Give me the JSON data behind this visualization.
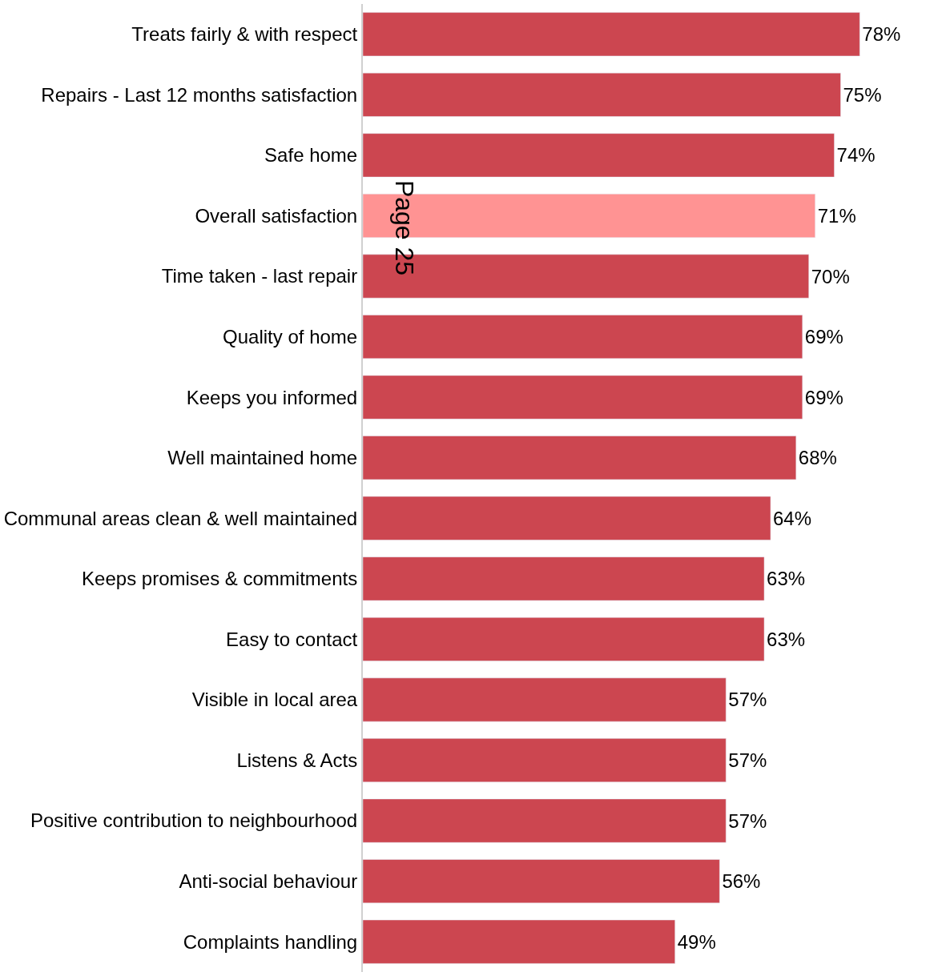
{
  "chart_data": {
    "type": "bar",
    "orientation": "horizontal",
    "categories": [
      "Treats fairly & with respect",
      "Repairs - Last 12 months satisfaction",
      "Safe home",
      "Overall satisfaction",
      "Time taken - last repair",
      "Quality of home",
      "Keeps you informed",
      "Well maintained home",
      "Communal areas clean & well maintained",
      "Keeps promises & commitments",
      "Easy to contact",
      "Visible in local area",
      "Listens & Acts",
      "Positive contribution to neighbourhood",
      "Anti-social behaviour",
      "Complaints handling"
    ],
    "values": [
      78,
      75,
      74,
      71,
      70,
      69,
      69,
      68,
      64,
      63,
      63,
      57,
      57,
      57,
      56,
      49
    ],
    "value_labels": [
      "78%",
      "75%",
      "74%",
      "71%",
      "70%",
      "69%",
      "69%",
      "68%",
      "64%",
      "63%",
      "63%",
      "57%",
      "57%",
      "57%",
      "56%",
      "49%"
    ],
    "colors": [
      "#cc4650",
      "#cc4650",
      "#cc4650",
      "#ff9393",
      "#cc4650",
      "#cc4650",
      "#cc4650",
      "#cc4650",
      "#cc4650",
      "#cc4650",
      "#cc4650",
      "#cc4650",
      "#cc4650",
      "#cc4650",
      "#cc4650",
      "#cc4650"
    ],
    "annotations": [
      "Page 25"
    ]
  }
}
